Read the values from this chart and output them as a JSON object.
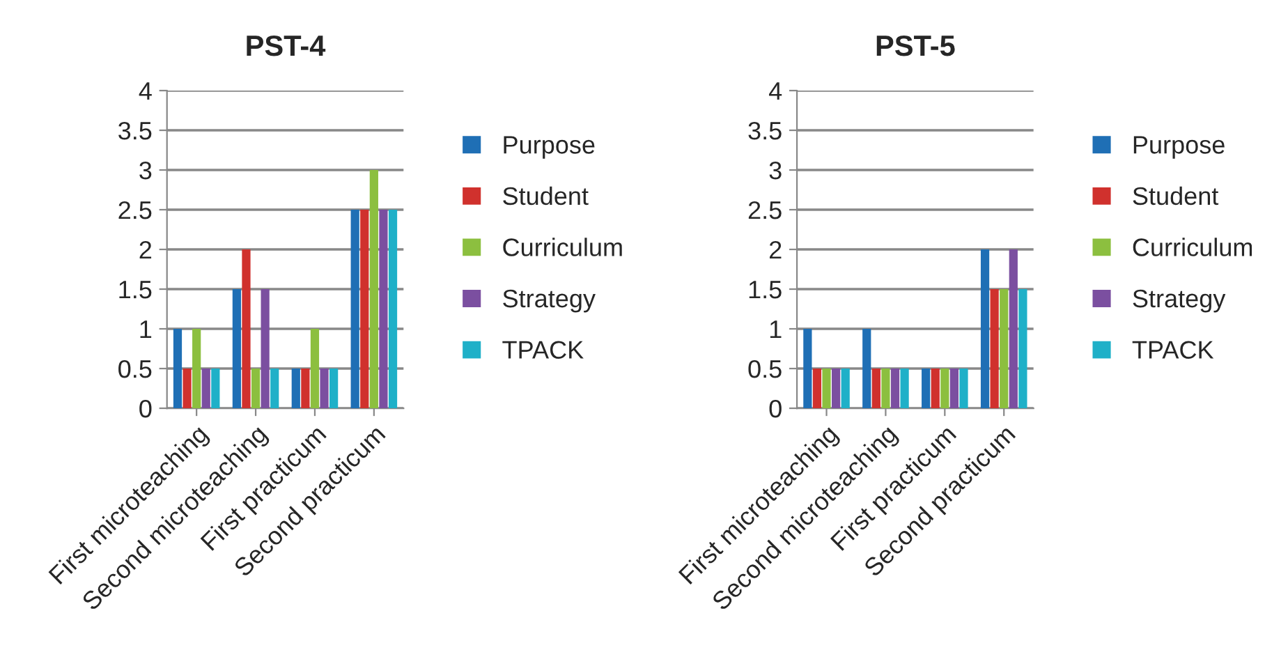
{
  "chart_data": [
    {
      "type": "bar",
      "title": "PST-4",
      "categories": [
        "First microteaching",
        "Second microteaching",
        "First practicum",
        "Second practicum"
      ],
      "series": [
        {
          "name": "Purpose",
          "color": "#1f6fb5",
          "values": [
            1,
            1.5,
            0.5,
            2.5
          ]
        },
        {
          "name": "Student",
          "color": "#d0312d",
          "values": [
            0.5,
            2,
            0.5,
            2.5
          ]
        },
        {
          "name": "Curriculum",
          "color": "#8cbf3f",
          "values": [
            1,
            0.5,
            1,
            3
          ]
        },
        {
          "name": "Strategy",
          "color": "#7b4fa0",
          "values": [
            0.5,
            1.5,
            0.5,
            2.5
          ]
        },
        {
          "name": "TPACK",
          "color": "#1fb0c8",
          "values": [
            0.5,
            0.5,
            0.5,
            2.5
          ]
        }
      ],
      "ylim": [
        0,
        4
      ],
      "yticks": [
        0,
        0.5,
        1,
        1.5,
        2,
        2.5,
        3,
        3.5,
        4
      ],
      "grid": "y",
      "legend": "right"
    },
    {
      "type": "bar",
      "title": "PST-5",
      "categories": [
        "First microteaching",
        "Second microteaching",
        "First practicum",
        "Second practicum"
      ],
      "series": [
        {
          "name": "Purpose",
          "color": "#1f6fb5",
          "values": [
            1,
            1,
            0.5,
            2
          ]
        },
        {
          "name": "Student",
          "color": "#d0312d",
          "values": [
            0.5,
            0.5,
            0.5,
            1.5
          ]
        },
        {
          "name": "Curriculum",
          "color": "#8cbf3f",
          "values": [
            0.5,
            0.5,
            0.5,
            1.5
          ]
        },
        {
          "name": "Strategy",
          "color": "#7b4fa0",
          "values": [
            0.5,
            0.5,
            0.5,
            2
          ]
        },
        {
          "name": "TPACK",
          "color": "#1fb0c8",
          "values": [
            0.5,
            0.5,
            0.5,
            1.5
          ]
        }
      ],
      "ylim": [
        0,
        4
      ],
      "yticks": [
        0,
        0.5,
        1,
        1.5,
        2,
        2.5,
        3,
        3.5,
        4
      ],
      "grid": "y",
      "legend": "right"
    }
  ]
}
